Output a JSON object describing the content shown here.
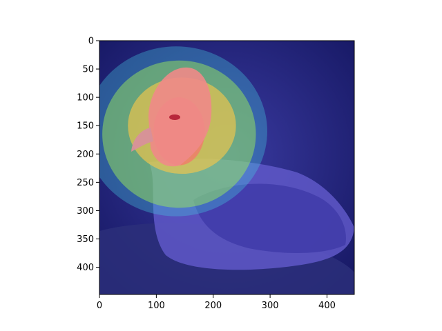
{
  "chart_data": {
    "type": "heatmap",
    "description_kind": "image overlaid with attention heatmap (jet colormap)",
    "colormap": "jet",
    "title": "",
    "xlabel": "",
    "ylabel": "",
    "xlim": [
      0,
      448
    ],
    "ylim": [
      448,
      0
    ],
    "x_ticks": [
      0,
      100,
      200,
      300,
      400
    ],
    "y_ticks": [
      0,
      50,
      100,
      150,
      200,
      250,
      300,
      350,
      400
    ],
    "grid": false,
    "heat_regions": [
      {
        "level": 1.0,
        "cx": 140,
        "cy": 160,
        "rx": 45,
        "ry": 60
      },
      {
        "level": 0.8,
        "cx": 145,
        "cy": 150,
        "rx": 95,
        "ry": 85
      },
      {
        "level": 0.55,
        "cx": 140,
        "cy": 165,
        "rx": 135,
        "ry": 130
      },
      {
        "level": 0.35,
        "cx": 135,
        "cy": 160,
        "rx": 160,
        "ry": 150
      }
    ],
    "colors": {
      "background_low": "#1b1f8a",
      "mid_cyan": "#37e0d8",
      "mid_yellow": "#f2d338",
      "high_red": "#f07a6e"
    }
  }
}
